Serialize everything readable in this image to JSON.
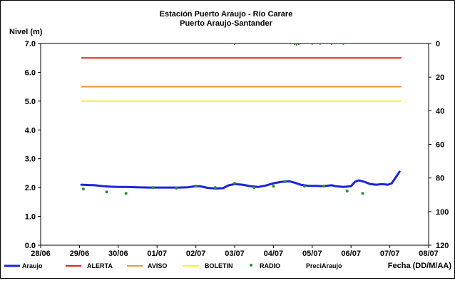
{
  "chart_data": {
    "type": "line",
    "title": "Estación Puerto Araujo - Río Carare",
    "subtitle": "Puerto Araujo-Santander",
    "ylabel": "Nivel (m)",
    "xlabel": "Fecha (DD/M/AA)",
    "x_ticks": [
      "28/06",
      "29/06",
      "30/06",
      "01/07",
      "02/07",
      "03/07",
      "04/07",
      "05/07",
      "06/07",
      "07/07",
      "08/07"
    ],
    "y_ticks": [
      "0.0",
      "1.0",
      "2.0",
      "3.0",
      "4.0",
      "5.0",
      "6.0",
      "7.0"
    ],
    "y2_ticks": [
      "0",
      "20",
      "40",
      "60",
      "80",
      "100",
      "120"
    ],
    "xlim": [
      0,
      10
    ],
    "ylim": [
      0,
      7
    ],
    "y2lim": [
      0,
      120
    ],
    "y2_inverted": true,
    "grid": false,
    "legend_position": "bottom",
    "thresholds": [
      {
        "name": "ALERTA",
        "value": 6.5,
        "color": "#e8201a"
      },
      {
        "name": "AVISO",
        "value": 5.5,
        "color": "#ef9933"
      },
      {
        "name": "BOLETIN",
        "value": 5.0,
        "color": "#f2f23a"
      }
    ],
    "series": [
      {
        "name": "Araujo",
        "color": "#1a24d9",
        "x": [
          1.05,
          1.2,
          1.4,
          1.6,
          1.8,
          2.0,
          2.2,
          2.5,
          2.8,
          3.0,
          3.3,
          3.6,
          3.8,
          3.95,
          4.1,
          4.3,
          4.5,
          4.7,
          4.85,
          5.0,
          5.2,
          5.4,
          5.6,
          5.8,
          6.0,
          6.2,
          6.4,
          6.55,
          6.7,
          6.9,
          7.1,
          7.3,
          7.5,
          7.6,
          7.8,
          8.0,
          8.1,
          8.2,
          8.35,
          8.5,
          8.65,
          8.8,
          8.95,
          9.05,
          9.15,
          9.25
        ],
        "values": [
          2.1,
          2.09,
          2.08,
          2.05,
          2.03,
          2.02,
          2.02,
          2.01,
          2.0,
          2.0,
          2.0,
          2.0,
          2.01,
          2.04,
          2.05,
          1.99,
          1.97,
          1.98,
          2.08,
          2.12,
          2.1,
          2.05,
          2.02,
          2.07,
          2.15,
          2.2,
          2.22,
          2.17,
          2.1,
          2.06,
          2.06,
          2.05,
          2.08,
          2.05,
          2.02,
          2.05,
          2.2,
          2.25,
          2.2,
          2.12,
          2.1,
          2.12,
          2.1,
          2.15,
          2.35,
          2.55
        ]
      },
      {
        "name": "RADIO",
        "color": "#2e8b3a",
        "x": [
          1.1,
          1.7,
          2.2,
          2.9,
          3.5,
          4.0,
          4.5,
          5.0,
          5.5,
          6.0,
          6.3,
          6.8,
          7.3,
          7.9,
          8.3
        ],
        "values": [
          1.95,
          1.85,
          1.8,
          2.0,
          1.98,
          2.05,
          2.0,
          2.15,
          2.0,
          2.05,
          2.2,
          2.05,
          2.05,
          1.88,
          1.8
        ]
      },
      {
        "name": "PreciAraujo",
        "color": "#2e8b3a",
        "axis": "y2",
        "x": [
          5.0,
          6.55,
          6.6,
          6.65,
          7.0,
          7.2,
          7.5,
          7.8
        ],
        "values": [
          0.5,
          0.5,
          0.8,
          0.5,
          0.3,
          0.3,
          0.3,
          0.3
        ]
      }
    ]
  }
}
